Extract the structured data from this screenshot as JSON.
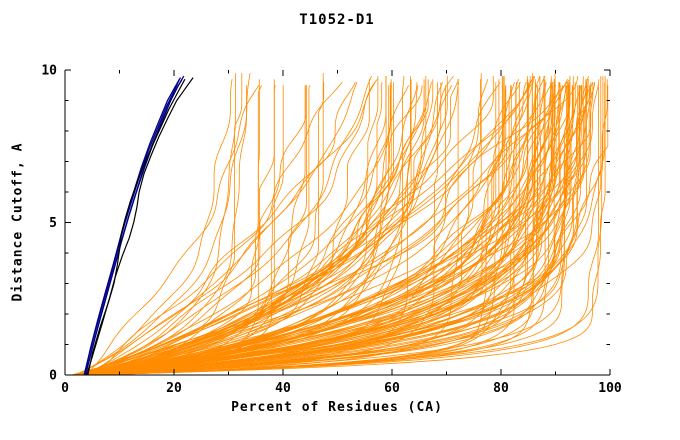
{
  "title": "T1052-D1",
  "chart_data": {
    "type": "line",
    "title": "T1052-D1",
    "xlabel": "Percent of Residues (CA)",
    "ylabel": "Distance Cutoff, A",
    "xlim": [
      0,
      100
    ],
    "ylim": [
      0,
      10
    ],
    "x_major_ticks": [
      0,
      20,
      40,
      60,
      80,
      100
    ],
    "x_minor_step": 10,
    "y_major_ticks": [
      0,
      5,
      10
    ],
    "y_minor_step": 1,
    "grid": false,
    "legend": null,
    "colors": {
      "ensemble": "#ff8c00",
      "highlight": "#00008b",
      "reference": "#000000",
      "axis": "#000000",
      "background": "#ffffff"
    },
    "ensemble": {
      "description": "Dense fan of orange per-model curves: percent of CA residues within each distance cutoff; most curves sweep right and saturate near 85-99%, a minority stay left reaching only 25-65% at 10 A",
      "count": 160,
      "seed": 11,
      "start_percent_range": [
        2.5,
        6
      ],
      "end_percent_groups": [
        {
          "weight": 0.5,
          "range": [
            85,
            99
          ]
        },
        {
          "weight": 0.3,
          "range": [
            55,
            90
          ]
        },
        {
          "weight": 0.2,
          "range": [
            25,
            65
          ]
        }
      ],
      "shape_k_range": [
        0.12,
        1.0
      ],
      "top_cutoff_range": [
        9.5,
        9.92
      ]
    },
    "highlight_series": [
      {
        "name": "highlight-1",
        "points": [
          [
            3.5,
            0
          ],
          [
            4.6,
            0.8
          ],
          [
            5.8,
            1.6
          ],
          [
            7.2,
            2.5
          ],
          [
            8.6,
            3.4
          ],
          [
            9.8,
            4.2
          ],
          [
            11,
            5
          ],
          [
            12.4,
            5.8
          ],
          [
            13.8,
            6.6
          ],
          [
            15.4,
            7.4
          ],
          [
            17,
            8.1
          ],
          [
            18.6,
            8.8
          ],
          [
            20,
            9.3
          ],
          [
            21,
            9.7
          ]
        ]
      },
      {
        "name": "highlight-2",
        "points": [
          [
            3.7,
            0
          ],
          [
            4.9,
            0.8
          ],
          [
            6.2,
            1.7
          ],
          [
            7.6,
            2.6
          ],
          [
            9,
            3.5
          ],
          [
            10.2,
            4.3
          ],
          [
            11.5,
            5.1
          ],
          [
            12.9,
            5.9
          ],
          [
            14.3,
            6.7
          ],
          [
            15.9,
            7.5
          ],
          [
            17.5,
            8.2
          ],
          [
            19.1,
            8.9
          ],
          [
            20.5,
            9.4
          ],
          [
            21.5,
            9.7
          ]
        ]
      },
      {
        "name": "highlight-3",
        "points": [
          [
            3.6,
            0
          ],
          [
            4.7,
            0.9
          ],
          [
            6,
            1.8
          ],
          [
            7.4,
            2.7
          ],
          [
            8.8,
            3.6
          ],
          [
            10,
            4.4
          ],
          [
            11.2,
            5.2
          ],
          [
            12.6,
            6
          ],
          [
            14,
            6.8
          ],
          [
            15.6,
            7.6
          ],
          [
            17.2,
            8.3
          ],
          [
            18.8,
            9
          ],
          [
            20.2,
            9.45
          ],
          [
            21.2,
            9.75
          ]
        ]
      },
      {
        "name": "highlight-4",
        "points": [
          [
            3.8,
            0
          ],
          [
            5,
            0.9
          ],
          [
            6.4,
            1.8
          ],
          [
            7.8,
            2.7
          ],
          [
            9.2,
            3.6
          ],
          [
            10.4,
            4.4
          ],
          [
            11.7,
            5.2
          ],
          [
            13.1,
            6
          ],
          [
            14.6,
            6.8
          ],
          [
            16.2,
            7.6
          ],
          [
            17.8,
            8.3
          ],
          [
            19.4,
            9
          ],
          [
            20.8,
            9.5
          ],
          [
            21.8,
            9.8
          ]
        ]
      }
    ],
    "reference_series": [
      {
        "name": "reference-1",
        "points": [
          [
            4.2,
            0
          ],
          [
            5,
            0.7
          ],
          [
            6.5,
            1.6
          ],
          [
            8,
            2.4
          ],
          [
            9,
            3.0
          ],
          [
            9.6,
            3.6
          ],
          [
            10,
            4.1
          ],
          [
            10.3,
            4.6
          ],
          [
            11,
            5.1
          ],
          [
            12,
            5.7
          ],
          [
            13,
            6.2
          ],
          [
            14.5,
            6.9
          ],
          [
            16,
            7.5
          ],
          [
            17.5,
            8.1
          ],
          [
            19,
            8.7
          ],
          [
            20.5,
            9.2
          ],
          [
            22,
            9.7
          ]
        ]
      },
      {
        "name": "reference-2",
        "points": [
          [
            4.0,
            0
          ],
          [
            5.5,
            0.9
          ],
          [
            7,
            1.8
          ],
          [
            8.3,
            2.6
          ],
          [
            9.2,
            3.2
          ],
          [
            10.5,
            3.9
          ],
          [
            11.8,
            4.5
          ],
          [
            12.6,
            5.0
          ],
          [
            13.2,
            5.5
          ],
          [
            13.6,
            6.0
          ],
          [
            14.5,
            6.6
          ],
          [
            15.8,
            7.2
          ],
          [
            17.2,
            7.8
          ],
          [
            18.8,
            8.4
          ],
          [
            20.5,
            9.0
          ],
          [
            22.5,
            9.5
          ],
          [
            23.5,
            9.75
          ]
        ]
      }
    ]
  }
}
